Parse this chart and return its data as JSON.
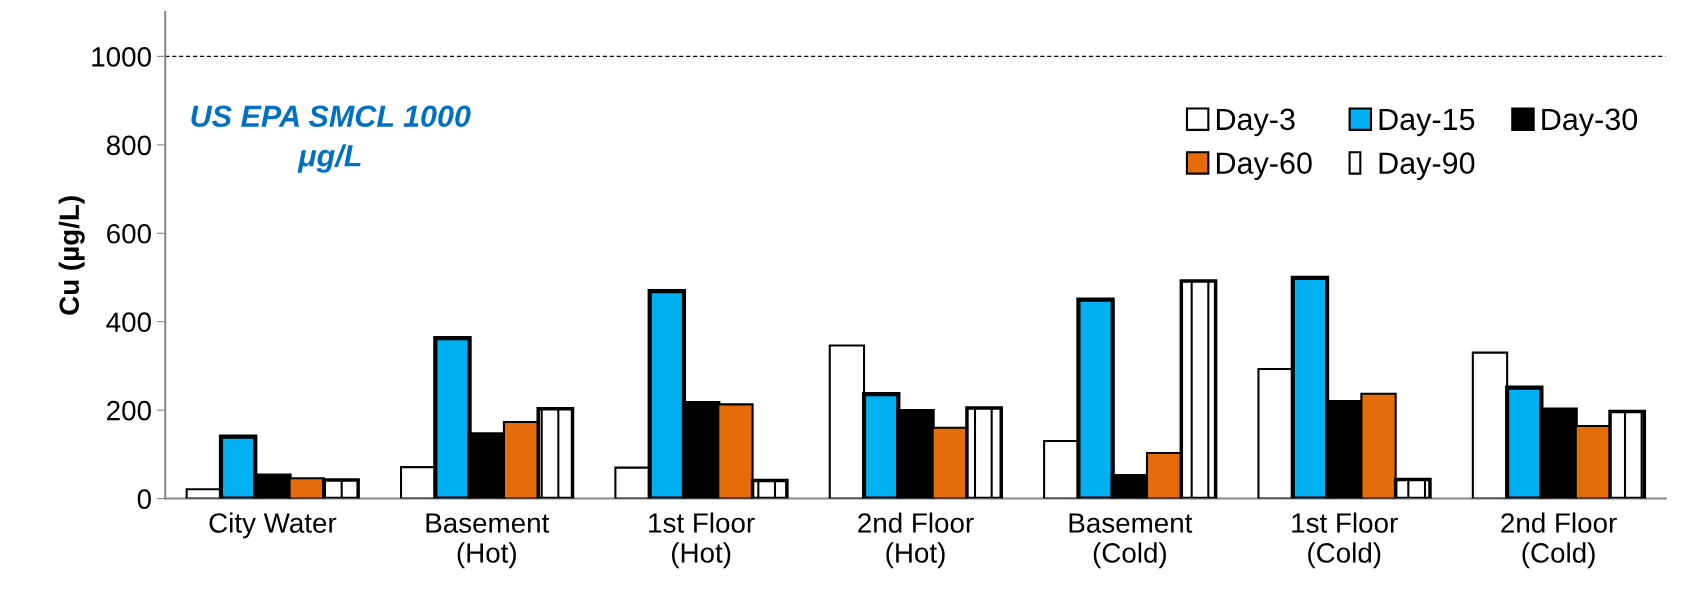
{
  "chart_data": {
    "type": "bar",
    "ylabel": "Cu (µg/L)",
    "categories": [
      "City Water",
      "Basement\n(Hot)",
      "1st Floor\n(Hot)",
      "2nd Floor\n(Hot)",
      "Basement\n(Cold)",
      "1st Floor\n(Cold)",
      "2nd Floor\n(Cold)"
    ],
    "series": [
      {
        "name": "Day-3",
        "color": "#ffffff",
        "values": [
          21,
          71,
          70,
          346,
          130,
          293,
          330
        ]
      },
      {
        "name": "Day-15",
        "color": "#00b0f0",
        "values": [
          140,
          363,
          469,
          236,
          450,
          499,
          251
        ]
      },
      {
        "name": "Day-30",
        "color": "#000000",
        "values": [
          52,
          145,
          216,
          198,
          51,
          218,
          201
        ]
      },
      {
        "name": "Day-60",
        "color": "#e46c0a",
        "values": [
          46,
          173,
          213,
          160,
          103,
          237,
          164
        ]
      },
      {
        "name": "Day-90",
        "color": "#ffffff",
        "values": [
          42,
          203,
          41,
          205,
          492,
          43,
          197
        ]
      }
    ],
    "ylim": [
      0,
      1100
    ],
    "yticks": [
      0,
      200,
      400,
      600,
      800,
      1000
    ],
    "ref_lines": [
      {
        "axis": "y",
        "value": 1000,
        "label": null,
        "color": "#000000",
        "line_style": "dashed"
      }
    ],
    "annotations": [
      "US EPA SMCL 1000\nμg/L"
    ],
    "grid": false,
    "legend": "top right"
  }
}
